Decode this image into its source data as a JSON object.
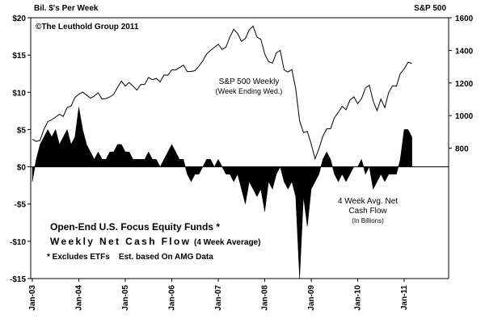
{
  "chart_data": {
    "type": "area-line",
    "left_axis_label": "Bil. $'s Per Week",
    "right_axis_label": "S&P 500",
    "annotations": [
      "©The Leuthold Group 2011",
      "S&P 500 Weekly",
      "(Week Ending Wed.)",
      "4 Week Avg. Net",
      "Cash Flow",
      "(In Billions)",
      "Open-End U.S. Focus Equity Funds *",
      "Weekly Net Cash Flow",
      "(4 Week Average)",
      "* Excludes ETFs    Est. based On AMG Data"
    ],
    "categories": [
      "Jan-03",
      null,
      null,
      null,
      null,
      null,
      null,
      null,
      null,
      null,
      null,
      null,
      "Jan-04",
      null,
      null,
      null,
      null,
      null,
      null,
      null,
      null,
      null,
      null,
      null,
      "Jan-05",
      null,
      null,
      null,
      null,
      null,
      null,
      null,
      null,
      null,
      null,
      null,
      "Jan-06",
      null,
      null,
      null,
      null,
      null,
      null,
      null,
      null,
      null,
      null,
      null,
      "Jan-07",
      null,
      null,
      null,
      null,
      null,
      null,
      null,
      null,
      null,
      null,
      null,
      "Jan-08",
      null,
      null,
      null,
      null,
      null,
      null,
      null,
      null,
      null,
      null,
      null,
      "Jan-09",
      null,
      null,
      null,
      null,
      null,
      null,
      null,
      null,
      null,
      null,
      null,
      "Jan-10",
      null,
      null,
      null,
      null,
      null,
      null,
      null,
      null,
      null,
      null,
      null,
      "Jan-11",
      null,
      null
    ],
    "series": [
      {
        "name": "4 Week Avg. Net Cash Flow",
        "color": "#000000",
        "kind": "area",
        "values": [
          -2,
          1,
          3,
          4,
          5,
          4,
          5,
          3,
          4,
          5,
          3,
          4,
          8,
          5,
          3,
          2,
          1,
          2,
          1,
          1,
          2,
          2,
          3,
          3,
          2,
          2,
          1,
          1,
          1,
          1,
          2,
          1,
          1,
          0,
          1,
          2,
          3,
          2,
          1,
          1,
          -1,
          -2,
          -1,
          -1,
          0,
          1,
          1,
          0,
          1,
          0,
          -1,
          -1,
          -2,
          -1,
          -3,
          -5,
          -2,
          -3,
          -4,
          -3,
          -6,
          -2,
          -3,
          -1,
          0,
          -2,
          -3,
          -2,
          -4,
          -15,
          -4,
          -8,
          -3,
          -2,
          -1,
          1,
          2,
          1,
          -1,
          -2,
          -1,
          -2,
          -1,
          0,
          0,
          1,
          -1,
          0,
          -3,
          -2,
          -1,
          -2,
          -1,
          -1,
          -1,
          1,
          5,
          5,
          4
        ]
      },
      {
        "name": "S&P 500 Weekly",
        "color": "#000000",
        "kind": "line",
        "axis": "y2",
        "values": [
          855,
          841,
          848,
          916,
          963,
          974,
          990,
          1008,
          995,
          1050,
          1058,
          1111,
          1131,
          1144,
          1126,
          1107,
          1120,
          1140,
          1101,
          1104,
          1114,
          1130,
          1173,
          1211,
          1181,
          1203,
          1180,
          1156,
          1191,
          1191,
          1234,
          1220,
          1228,
          1207,
          1249,
          1248,
          1280,
          1280,
          1294,
          1310,
          1270,
          1270,
          1276,
          1303,
          1335,
          1377,
          1400,
          1418,
          1438,
          1406,
          1420,
          1482,
          1530,
          1503,
          1455,
          1473,
          1526,
          1549,
          1481,
          1468,
          1378,
          1330,
          1322,
          1385,
          1400,
          1280,
          1267,
          1282,
          1166,
          968,
          896,
          903,
          825,
          735,
          797,
          872,
          919,
          919,
          987,
          1020,
          1057,
          1036,
          1095,
          1115,
          1073,
          1104,
          1169,
          1186,
          1089,
          1030,
          1101,
          1049,
          1141,
          1183,
          1180,
          1257,
          1286,
          1327,
          1320
        ]
      }
    ],
    "ylim": [
      -15,
      20
    ],
    "yticks": [
      {
        "value": -15,
        "label": "-$15"
      },
      {
        "value": -10,
        "label": "-$10"
      },
      {
        "value": -5,
        "label": "-$5"
      },
      {
        "value": 0,
        "label": "$0"
      },
      {
        "value": 5,
        "label": "$5"
      },
      {
        "value": 10,
        "label": "$10"
      },
      {
        "value": 15,
        "label": "$15"
      },
      {
        "value": 20,
        "label": "$20"
      }
    ],
    "y2lim": [
      0,
      1600
    ],
    "y2ticks": [
      800,
      1000,
      1200,
      1400,
      1600
    ]
  }
}
